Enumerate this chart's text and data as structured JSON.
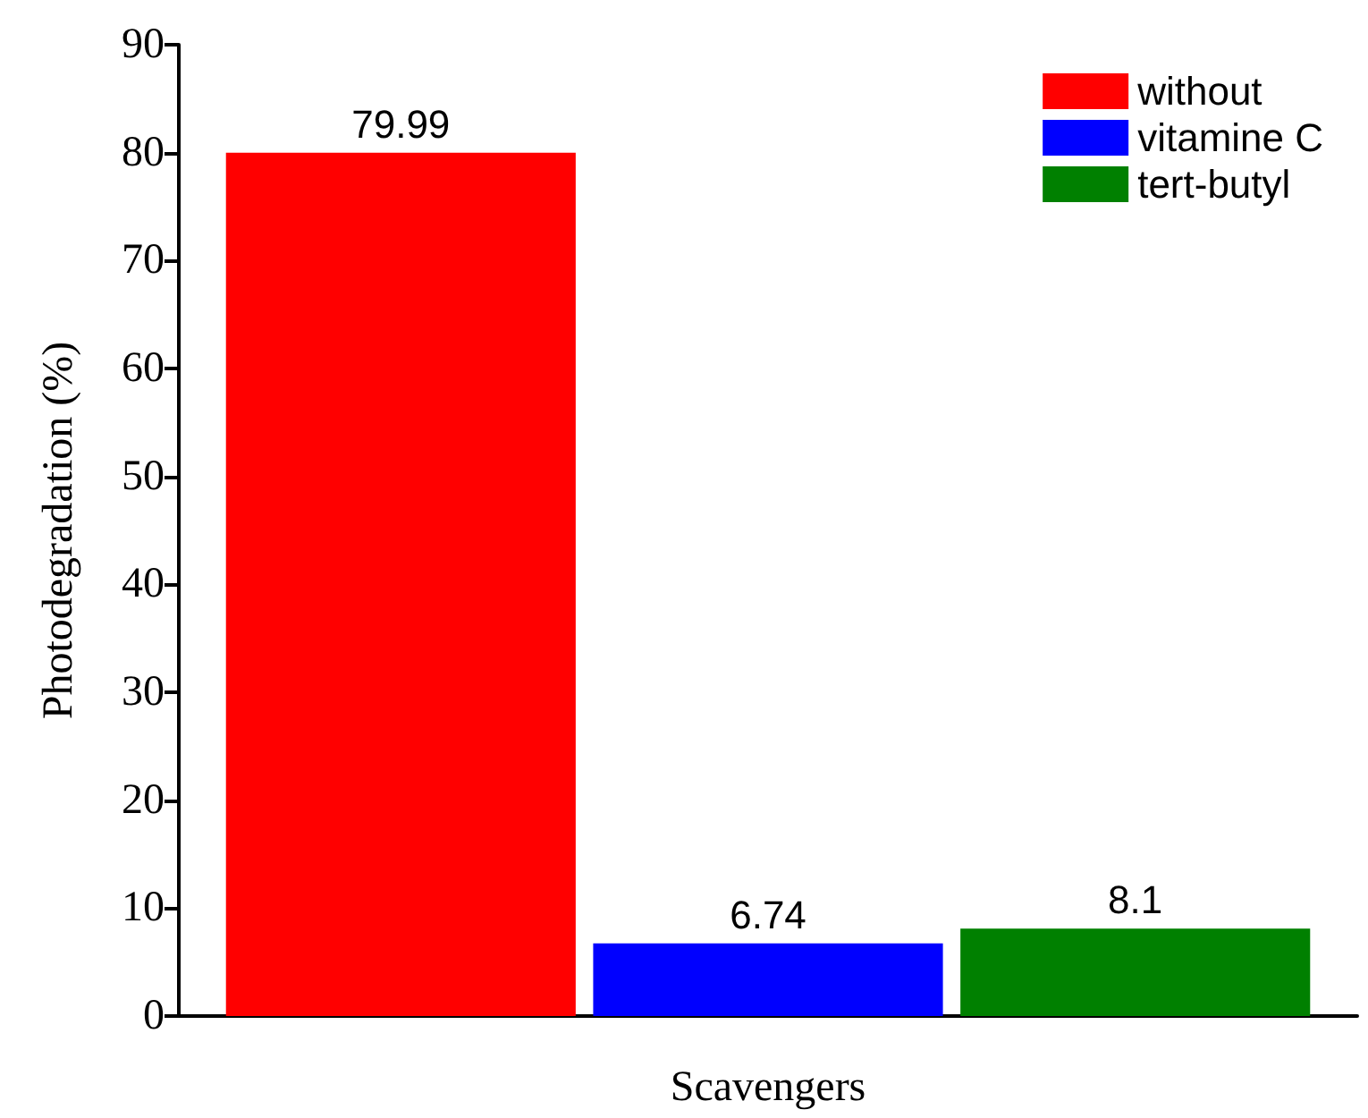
{
  "chart_data": {
    "type": "bar",
    "xlabel": "Scavengers",
    "ylabel": "Photodegradation (%)",
    "categories": [
      null
    ],
    "series": [
      {
        "name": "without",
        "color": "#ff0000",
        "values": [
          79.99
        ]
      },
      {
        "name": "vitamine C",
        "color": "#0000ff",
        "values": [
          6.74
        ]
      },
      {
        "name": "tert-butyl",
        "color": "#008000",
        "values": [
          8.1
        ]
      }
    ],
    "ylim": [
      0,
      90
    ],
    "yticks": [
      0,
      10,
      20,
      30,
      40,
      50,
      60,
      70,
      80,
      90
    ],
    "grid": false,
    "legend": "top right",
    "data_labels": true
  }
}
